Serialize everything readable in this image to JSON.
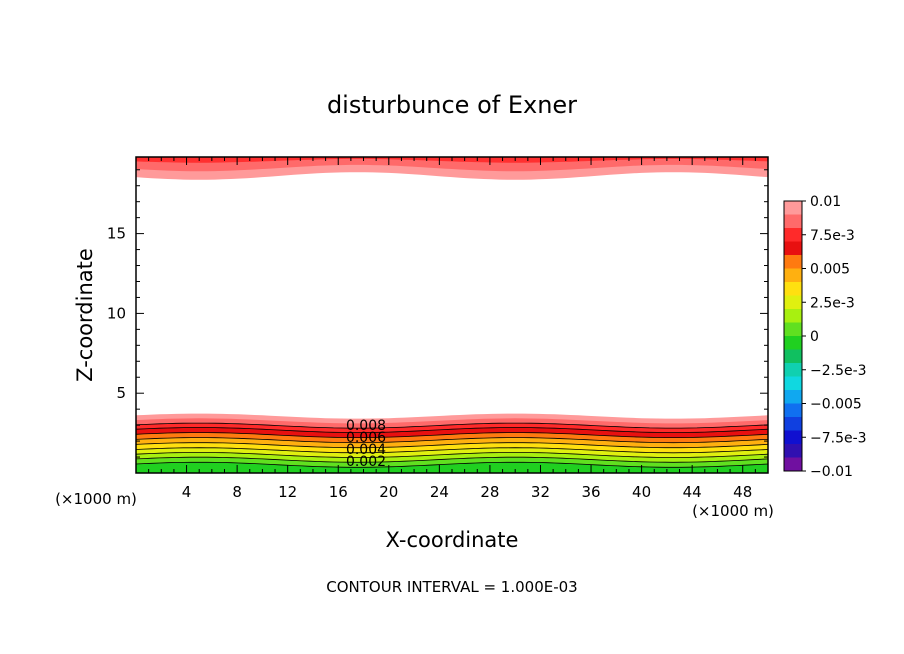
{
  "chart_data": {
    "type": "contour",
    "title": "disturbunce of Exner",
    "xlabel": "X-coordinate",
    "ylabel": "Z-coordinate",
    "x_unit_label": "(×1000 m)",
    "x_unit_label_right": "(×1000 m)",
    "footer": "CONTOUR INTERVAL = 1.000E-03",
    "xlim": [
      0,
      50
    ],
    "ylim": [
      0,
      19.8
    ],
    "x_ticks": [
      4,
      8,
      12,
      16,
      20,
      24,
      28,
      32,
      36,
      40,
      44,
      48
    ],
    "x_tick_labels": [
      "4",
      "8",
      "12",
      "16",
      "20",
      "24",
      "28",
      "32",
      "36",
      "40",
      "44",
      "48"
    ],
    "y_ticks": [
      5,
      10,
      15
    ],
    "y_tick_labels": [
      "5",
      "10",
      "15"
    ],
    "colorbar": {
      "range": [
        -0.01,
        0.01
      ],
      "labels": [
        "0.01",
        "7.5e-3",
        "0.005",
        "2.5e-3",
        "0",
        "−2.5e-3",
        "−0.005",
        "−7.5e-3",
        "−0.01"
      ],
      "colors": [
        "#ff9a9a",
        "#ff6a6a",
        "#ff2a2a",
        "#e81010",
        "#ff7a10",
        "#ffb010",
        "#ffe010",
        "#e0f010",
        "#a8f010",
        "#60e020",
        "#20d020",
        "#10c060",
        "#10d0b0",
        "#10d8e0",
        "#10a8f0",
        "#1070f0",
        "#1040e0",
        "#1010d0",
        "#3010b0",
        "#7010a0"
      ]
    },
    "contour_labels": [
      "0.008",
      "0.006",
      "0.004",
      "0.002"
    ],
    "contour_interval": 0.001
  }
}
